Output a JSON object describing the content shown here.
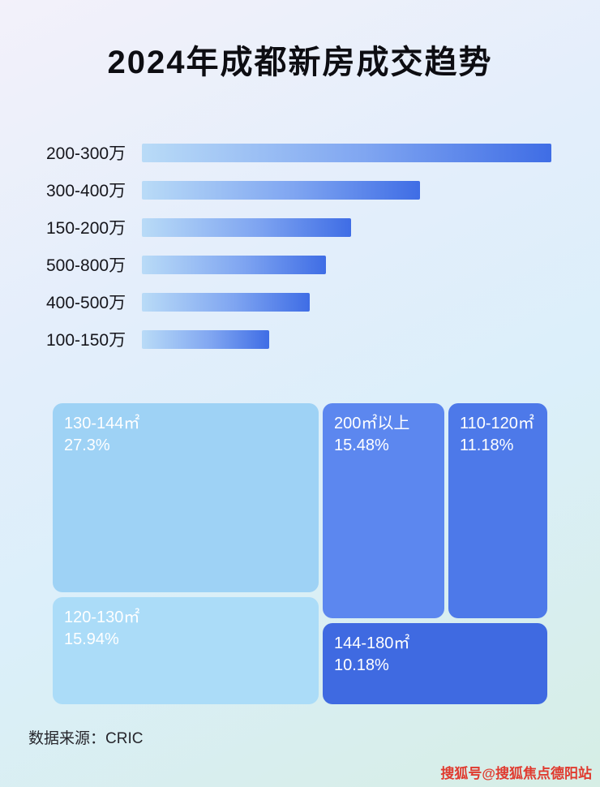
{
  "page": {
    "title": "2024年成都新房成交趋势",
    "source": "数据来源：CRIC",
    "watermark": "搜狐号@搜狐焦点德阳站"
  },
  "colors": {
    "bar_gradient_start": "#b9dbf7",
    "bar_gradient_end": "#3f6de5",
    "treemap_light": "#9ed2f5",
    "treemap_lighter": "#abdcf8",
    "treemap_mid": "#5c87ef",
    "treemap_dark": "#4d79e9",
    "treemap_darkest": "#3f6ae1",
    "watermark_red": "#e03a2f"
  },
  "chart_data": [
    {
      "type": "bar",
      "orientation": "horizontal",
      "title": "2024年成都新房成交趋势",
      "categories": [
        "200-300万",
        "300-400万",
        "150-200万",
        "500-800万",
        "400-500万",
        "100-150万"
      ],
      "values": [
        100,
        68,
        51,
        45,
        41,
        31
      ],
      "value_unit": "relative bar length, % of longest bar (no axis labels shown)",
      "xlabel": "",
      "ylabel": "",
      "grid": false,
      "legend": false
    },
    {
      "type": "treemap",
      "items": [
        {
          "label": "130-144㎡",
          "value": 27.3,
          "value_label": "27.3%"
        },
        {
          "label": "120-130㎡",
          "value": 15.94,
          "value_label": "15.94%"
        },
        {
          "label": "200㎡以上",
          "value": 15.48,
          "value_label": "15.48%"
        },
        {
          "label": "110-120㎡",
          "value": 11.18,
          "value_label": "11.18%"
        },
        {
          "label": "144-180㎡",
          "value": 10.18,
          "value_label": "10.18%"
        }
      ]
    }
  ]
}
